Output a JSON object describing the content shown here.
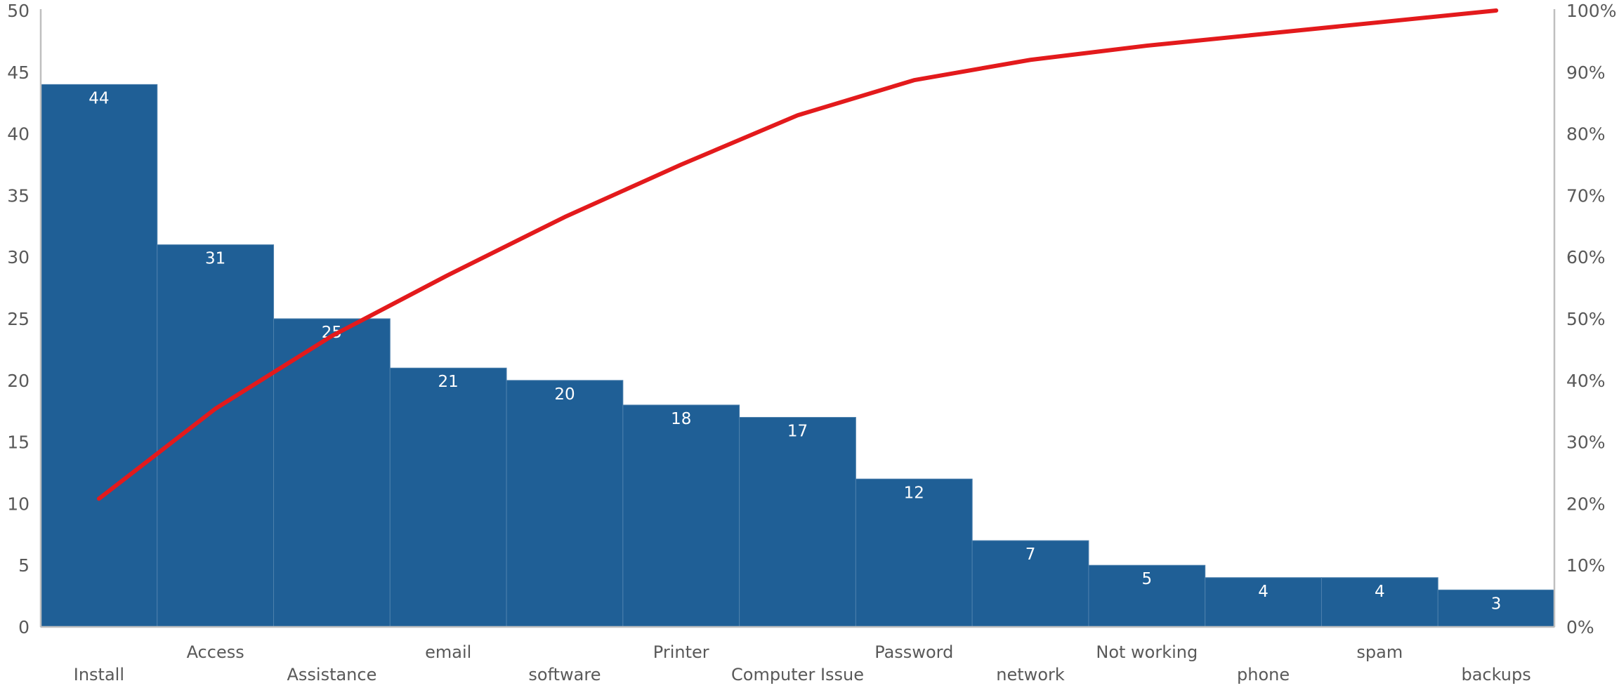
{
  "chart_data": {
    "type": "bar",
    "subtype": "pareto",
    "title": "",
    "xlabel": "",
    "ylabel": "",
    "categories": [
      "Install",
      "Access",
      "Assistance",
      "email",
      "software",
      "Printer",
      "Computer Issue",
      "Password",
      "network",
      "Not working",
      "phone",
      "spam",
      "backups"
    ],
    "series": [
      {
        "kind": "bar",
        "values": [
          44,
          31,
          25,
          21,
          20,
          18,
          17,
          12,
          7,
          5,
          4,
          4,
          3
        ],
        "color": "#1f5f96"
      },
      {
        "kind": "line",
        "axis": "secondary",
        "values": [
          20.8,
          35.4,
          47.2,
          57.1,
          66.5,
          75.0,
          83.0,
          88.7,
          92.0,
          94.3,
          96.2,
          98.1,
          100.0
        ],
        "color": "#e31a1c"
      }
    ],
    "ylim": [
      0,
      50
    ],
    "y_ticks": [
      "0",
      "5",
      "10",
      "15",
      "20",
      "25",
      "30",
      "35",
      "40",
      "45",
      "50"
    ],
    "y2lim": [
      0,
      100
    ],
    "y2_ticks": [
      "0%",
      "10%",
      "20%",
      "30%",
      "40%",
      "50%",
      "60%",
      "70%",
      "80%",
      "90%",
      "100%"
    ],
    "data_labels": [
      "44",
      "31",
      "25",
      "21",
      "20",
      "18",
      "17",
      "12",
      "7",
      "5",
      "4",
      "4",
      "3"
    ],
    "grid": false,
    "legend": "none"
  }
}
